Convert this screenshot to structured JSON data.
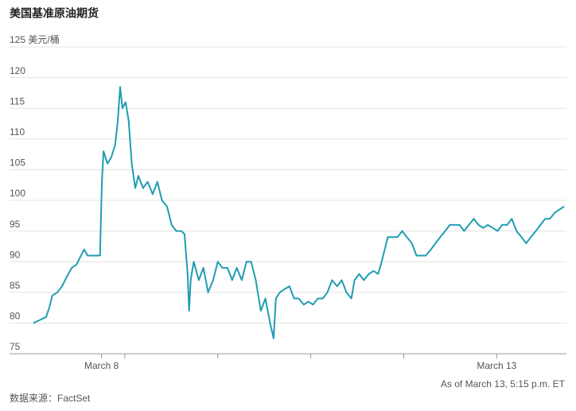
{
  "chart_data": {
    "type": "line",
    "title": "美国基准原油期货",
    "note": "As of March 13, 5:15 p.m. ET",
    "source": "数据来源：FactSet",
    "color": "#1f9db2",
    "grid": true,
    "ylim": [
      75,
      125
    ],
    "yticks": [
      {
        "value": 125,
        "label": "125 美元/桶"
      },
      120,
      115,
      110,
      105,
      100,
      95,
      90,
      85,
      80,
      75
    ],
    "xlim": [
      0,
      138
    ],
    "xticks": [
      {
        "value": 18,
        "label": "March 8"
      },
      {
        "value": 120,
        "label": "March 13"
      }
    ],
    "minor_xticks": [
      24,
      48,
      72,
      96
    ],
    "x": [
      0.4,
      2.1,
      3.7,
      4.5,
      5.3,
      6.6,
      7.8,
      9.0,
      10.3,
      11.5,
      12.3,
      13.5,
      14.4,
      15.6,
      16.8,
      17.6,
      18.1,
      18.5,
      19.5,
      20.5,
      21.5,
      22.2,
      22.8,
      23.4,
      24.2,
      25.0,
      25.8,
      26.7,
      27.5,
      28.7,
      29.9,
      31.2,
      32.4,
      33.6,
      34.9,
      36.1,
      37.3,
      38.6,
      39.4,
      40.2,
      40.6,
      41.0,
      41.8,
      43.1,
      44.3,
      45.5,
      46.8,
      48.0,
      49.2,
      50.5,
      51.7,
      52.9,
      54.2,
      55.4,
      56.6,
      57.8,
      59.1,
      60.3,
      61.5,
      62.4,
      63.0,
      64.0,
      65.2,
      66.5,
      67.7,
      68.9,
      70.2,
      71.4,
      72.6,
      73.8,
      75.1,
      76.3,
      77.5,
      78.8,
      80.0,
      81.2,
      82.5,
      83.3,
      84.5,
      85.7,
      87.0,
      88.2,
      89.4,
      90.3,
      91.1,
      91.9,
      93.1,
      94.4,
      95.6,
      96.8,
      98.1,
      99.3,
      100.5,
      101.7,
      103.0,
      104.2,
      105.4,
      106.7,
      107.9,
      109.1,
      110.4,
      111.6,
      112.8,
      114.1,
      115.3,
      116.5,
      117.7,
      119.0,
      120.2,
      121.4,
      122.7,
      123.9,
      125.1,
      126.4,
      127.6,
      128.8,
      130.1,
      131.3,
      132.5,
      133.7,
      135.0,
      136.2,
      137.4
    ],
    "values": [
      80.0,
      80.5,
      81,
      82.5,
      84.5,
      85,
      86,
      87.5,
      89,
      89.5,
      90.5,
      92,
      91,
      91,
      91,
      91,
      103,
      108,
      106,
      107,
      109,
      113,
      118.5,
      115,
      116,
      113,
      106,
      102,
      104,
      102,
      103,
      101,
      103,
      100,
      99,
      96,
      95,
      95,
      94.5,
      88,
      82,
      87,
      90,
      87,
      89,
      85,
      87,
      90,
      89,
      89,
      87,
      89,
      87,
      90,
      90,
      87,
      82,
      84,
      80,
      77.5,
      84,
      85,
      85.5,
      86,
      84,
      84,
      83,
      83.5,
      83,
      84,
      84,
      85,
      87,
      86,
      87,
      85,
      84,
      87,
      88,
      87,
      88,
      88.5,
      88,
      90,
      92,
      94,
      94,
      94,
      95,
      94,
      93,
      91,
      91,
      91,
      92,
      93,
      94,
      95,
      96,
      96,
      96,
      95,
      96,
      97,
      96,
      95.5,
      96,
      95.5,
      95,
      96,
      96,
      97,
      95,
      94,
      93,
      94,
      95,
      96,
      97,
      97,
      98,
      98.5,
      99
    ]
  }
}
